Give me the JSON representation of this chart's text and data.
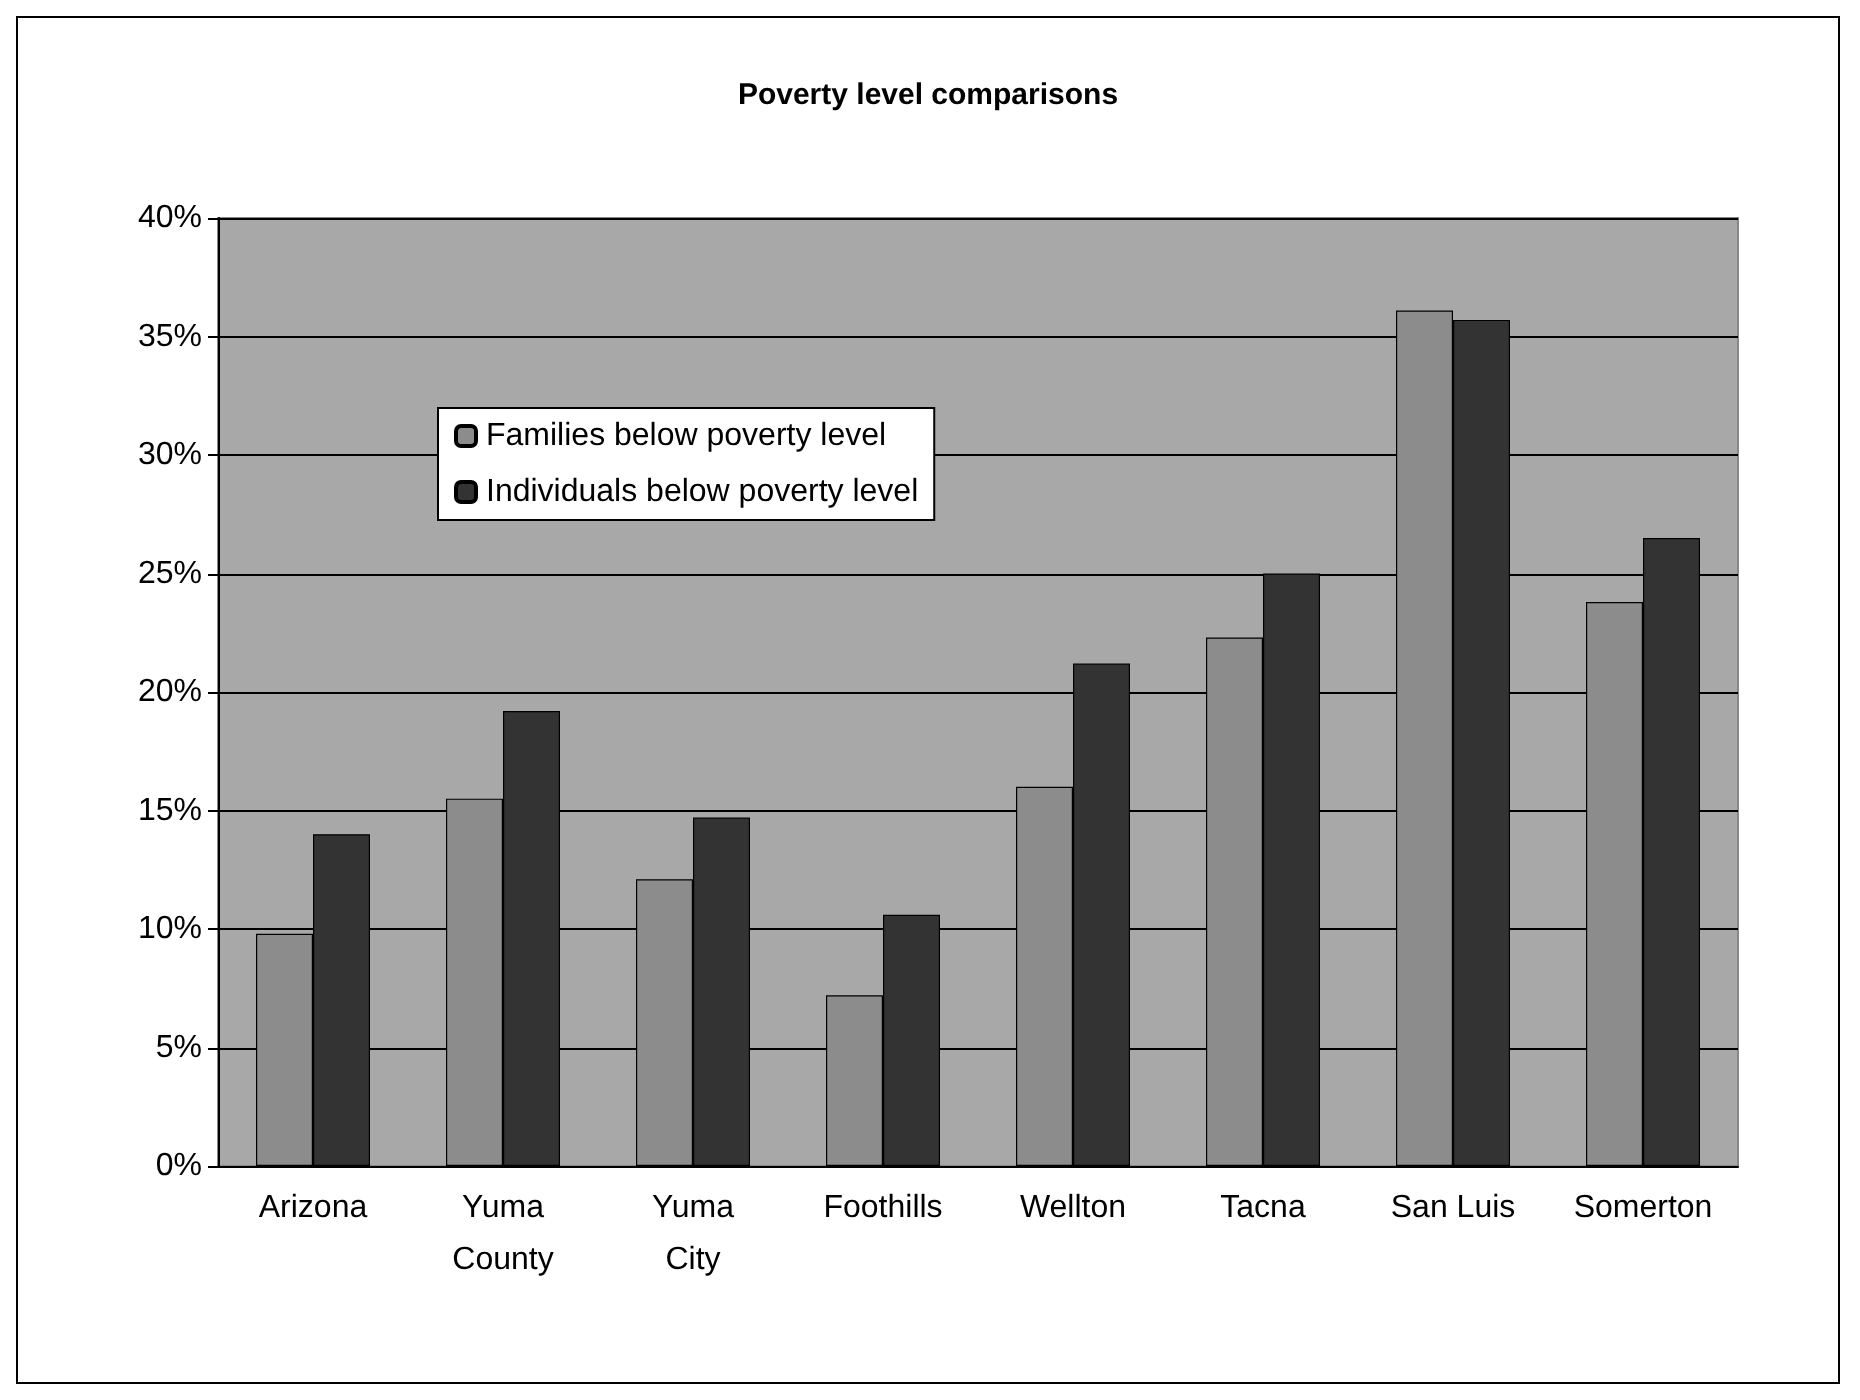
{
  "chart_data": {
    "type": "bar",
    "title": "Poverty level comparisons",
    "categories": [
      "Arizona",
      "Yuma\nCounty",
      "Yuma\nCity",
      "Foothills",
      "Wellton",
      "Tacna",
      "San Luis",
      "Somerton"
    ],
    "series": [
      {
        "name": "Families below poverty level",
        "color": "#8c8c8c",
        "values": [
          9.8,
          15.5,
          12.1,
          7.2,
          16.0,
          22.3,
          36.1,
          23.8
        ]
      },
      {
        "name": "Individuals below poverty level",
        "color": "#333333",
        "values": [
          14.0,
          19.2,
          14.7,
          10.6,
          21.2,
          25.0,
          35.7,
          26.5
        ]
      }
    ],
    "ylim": [
      0,
      40
    ],
    "yticks": [
      {
        "value": 0,
        "label": "0%"
      },
      {
        "value": 5,
        "label": "5%"
      },
      {
        "value": 10,
        "label": "10%"
      },
      {
        "value": 15,
        "label": "15%"
      },
      {
        "value": 20,
        "label": "20%"
      },
      {
        "value": 25,
        "label": "25%"
      },
      {
        "value": 30,
        "label": "30%"
      },
      {
        "value": 35,
        "label": "35%"
      },
      {
        "value": 40,
        "label": "40%"
      }
    ],
    "grid": "y",
    "legend": "top left"
  }
}
